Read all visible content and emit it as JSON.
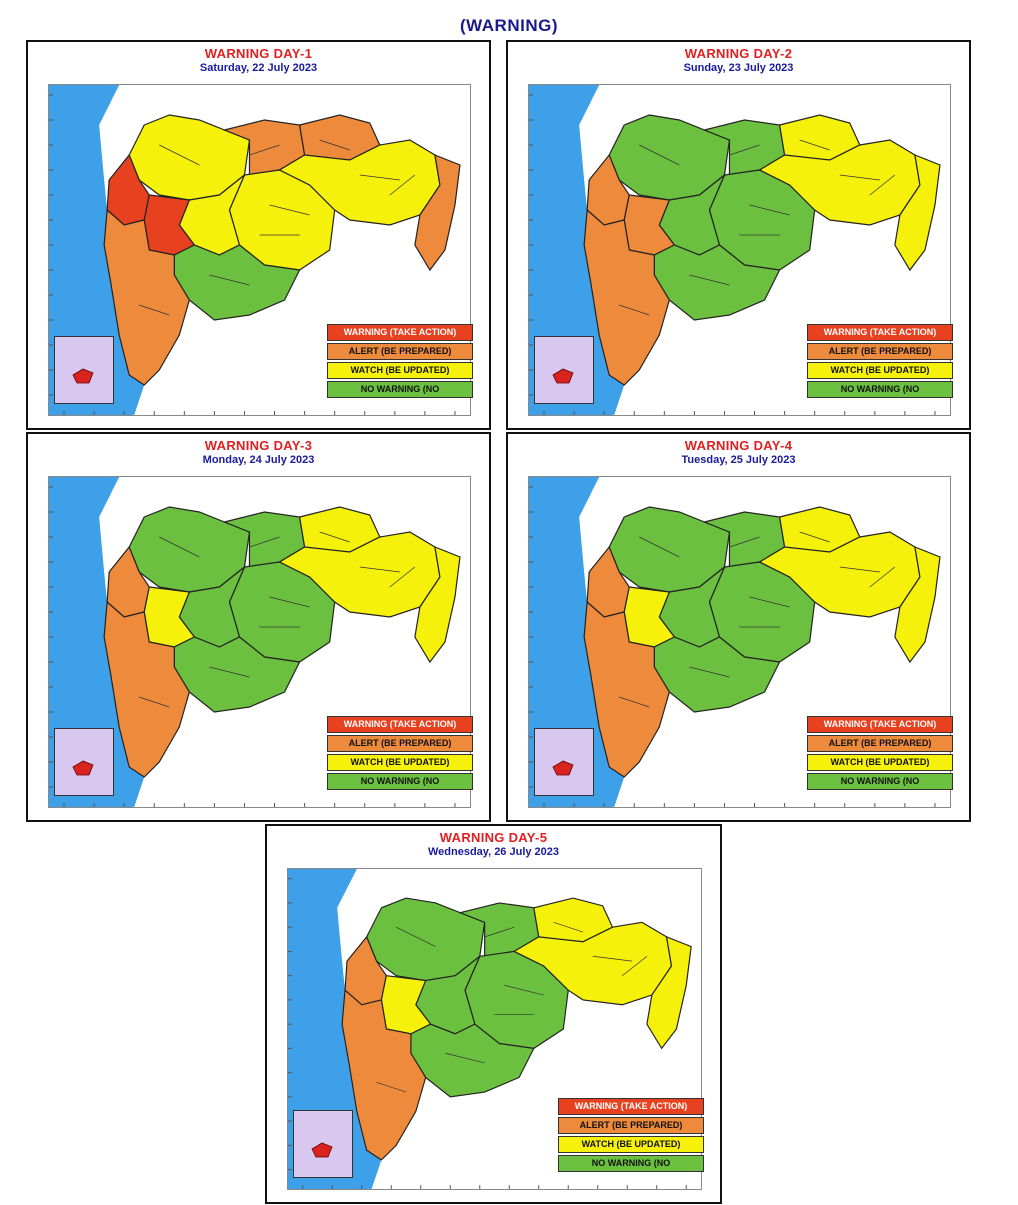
{
  "title": "(WARNING)",
  "legend": {
    "warning": "WARNING (TAKE ACTION)",
    "alert": "ALERT (BE PREPARED)",
    "watch": "WATCH (BE UPDATED)",
    "none": "NO WARNING (NO"
  },
  "colors": {
    "warning": "#e8411f",
    "alert": "#ee8a3c",
    "watch": "#f5f10a",
    "none": "#6bc13f",
    "sea": "#3da0e8"
  },
  "panels": [
    {
      "title": "WARNING DAY-1",
      "date": "Saturday,  22 July 2023",
      "zones": {
        "north_konkan": "warning",
        "pune_ghat": "warning",
        "konkan": "alert",
        "north_mah": "watch",
        "central_west": "watch",
        "marathwada": "watch",
        "east_vid": "watch",
        "south_mah": "none",
        "far_east": "alert",
        "jalgaon": "alert",
        "amravati": "alert"
      }
    },
    {
      "title": "WARNING DAY-2",
      "date": "Sunday,  23 July 2023",
      "zones": {
        "north_konkan": "alert",
        "pune_ghat": "alert",
        "konkan": "alert",
        "north_mah": "none",
        "central_west": "none",
        "marathwada": "none",
        "east_vid": "watch",
        "south_mah": "none",
        "far_east": "watch",
        "jalgaon": "none",
        "amravati": "watch"
      }
    },
    {
      "title": "WARNING DAY-3",
      "date": "Monday,  24 July 2023",
      "zones": {
        "north_konkan": "alert",
        "pune_ghat": "watch",
        "konkan": "alert",
        "north_mah": "none",
        "central_west": "none",
        "marathwada": "none",
        "east_vid": "watch",
        "south_mah": "none",
        "far_east": "watch",
        "jalgaon": "none",
        "amravati": "watch"
      }
    },
    {
      "title": "WARNING DAY-4",
      "date": "Tuesday,  25 July 2023",
      "zones": {
        "north_konkan": "alert",
        "pune_ghat": "watch",
        "konkan": "alert",
        "north_mah": "none",
        "central_west": "none",
        "marathwada": "none",
        "east_vid": "watch",
        "south_mah": "none",
        "far_east": "watch",
        "jalgaon": "none",
        "amravati": "watch"
      }
    },
    {
      "title": "WARNING DAY-5",
      "date": "Wednesday,  26 July 2023",
      "zones": {
        "north_konkan": "alert",
        "pune_ghat": "watch",
        "konkan": "alert",
        "north_mah": "none",
        "central_west": "none",
        "marathwada": "none",
        "east_vid": "watch",
        "south_mah": "none",
        "far_east": "watch",
        "jalgaon": "none",
        "amravati": "watch"
      }
    }
  ]
}
